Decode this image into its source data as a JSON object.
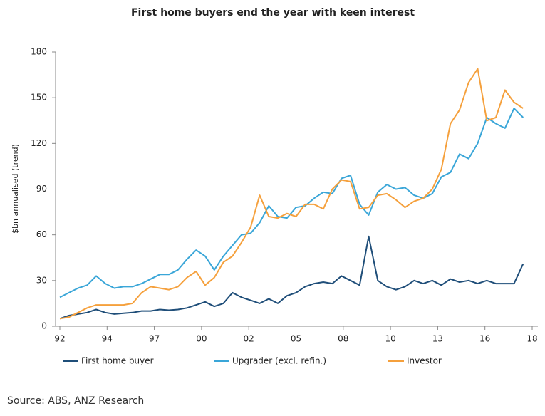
{
  "chart_data": {
    "type": "line",
    "title": "First home buyers end the year with keen interest",
    "y_label": "$bn annualised (trend)",
    "source": "Source: ABS, ANZ Research",
    "x": [
      1992,
      1992.5,
      1993,
      1993.5,
      1994,
      1994.5,
      1995,
      1995.5,
      1996,
      1996.5,
      1997,
      1997.5,
      1998,
      1998.5,
      1999,
      1999.5,
      2000,
      2000.5,
      2001,
      2001.5,
      2002,
      2002.5,
      2003,
      2003.5,
      2004,
      2004.5,
      2005,
      2005.5,
      2006,
      2006.5,
      2007,
      2007.5,
      2008,
      2008.5,
      2009,
      2009.5,
      2010,
      2010.5,
      2011,
      2011.5,
      2012,
      2012.5,
      2013,
      2013.5,
      2014,
      2014.5,
      2015,
      2015.5,
      2016,
      2016.5,
      2017,
      2017.5
    ],
    "series": [
      {
        "name": "First home buyer",
        "color": "#1f4e79",
        "values": [
          5,
          7,
          8,
          9,
          11,
          9,
          8,
          8.5,
          9,
          10,
          10,
          11,
          10.5,
          11,
          12,
          14,
          16,
          13,
          15,
          22,
          19,
          17,
          15,
          18,
          15,
          20,
          22,
          26,
          28,
          29,
          28,
          33,
          30,
          27,
          59,
          30,
          26,
          24,
          26,
          30,
          28,
          30,
          27,
          31,
          29,
          30,
          28,
          30,
          28,
          28,
          28,
          41
        ]
      },
      {
        "name": "Upgrader (excl. refin.)",
        "color": "#3aa6d8",
        "values": [
          19,
          22,
          25,
          27,
          33,
          28,
          25,
          26,
          26,
          28,
          31,
          34,
          34,
          37,
          44,
          50,
          46,
          37,
          46,
          53,
          60,
          61,
          68,
          79,
          72,
          71,
          78,
          79,
          84,
          88,
          87,
          97,
          99,
          80,
          73,
          88,
          93,
          90,
          91,
          86,
          84,
          87,
          98,
          101,
          113,
          110,
          120,
          137,
          133,
          130,
          143,
          137
        ]
      },
      {
        "name": "Investor",
        "color": "#f5a03c",
        "values": [
          5,
          6,
          9,
          12,
          14,
          14,
          14,
          14,
          15,
          22,
          26,
          25,
          24,
          26,
          32,
          36,
          27,
          32,
          42,
          46,
          55,
          65,
          86,
          72,
          71,
          74,
          72,
          80,
          80,
          77,
          90,
          96,
          95,
          77,
          78,
          86,
          87,
          83,
          78,
          82,
          84,
          90,
          103,
          133,
          142,
          160,
          169,
          135,
          137,
          155,
          147,
          143
        ]
      }
    ],
    "xlim": [
      1992,
      2018
    ],
    "xticks": [
      {
        "value": 1992,
        "label": "92"
      },
      {
        "value": 1994.6,
        "label": "94"
      },
      {
        "value": 1997.2,
        "label": "97"
      },
      {
        "value": 1999.8,
        "label": "00"
      },
      {
        "value": 2002.4,
        "label": "02"
      },
      {
        "value": 2005,
        "label": "05"
      },
      {
        "value": 2007.6,
        "label": "08"
      },
      {
        "value": 2010.2,
        "label": "10"
      },
      {
        "value": 2012.8,
        "label": "13"
      },
      {
        "value": 2015.4,
        "label": "16"
      },
      {
        "value": 2018,
        "label": "18"
      }
    ],
    "ylim": [
      0,
      180
    ],
    "yticks": [
      0,
      30,
      60,
      90,
      120,
      150,
      180
    ],
    "grid": false
  }
}
